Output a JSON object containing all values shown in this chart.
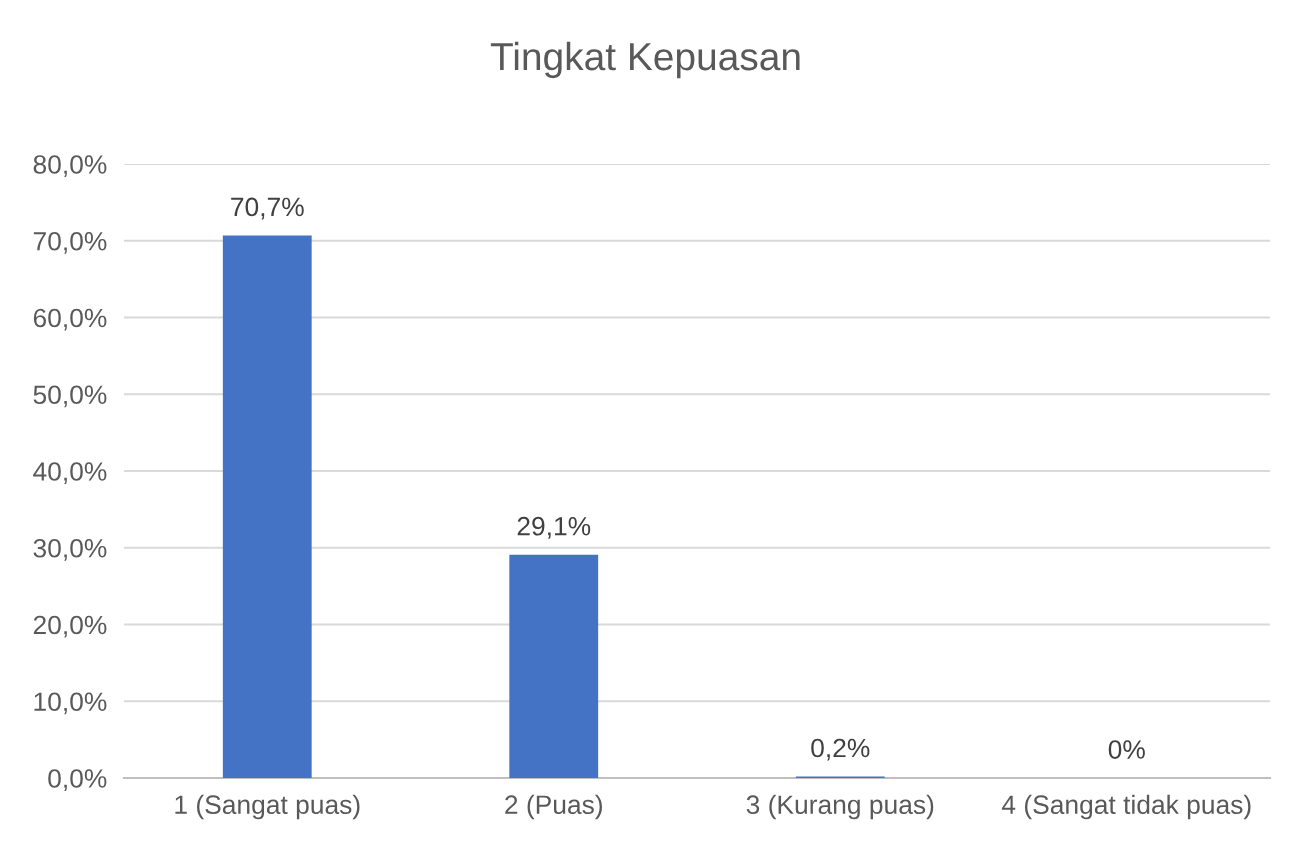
{
  "chart_data": {
    "type": "bar",
    "title": "Tingkat Kepuasan",
    "categories": [
      "1 (Sangat puas)",
      "2 (Puas)",
      "3 (Kurang puas)",
      "4 (Sangat tidak puas)"
    ],
    "values": [
      70.7,
      29.1,
      0.2,
      0
    ],
    "value_labels": [
      "70,7%",
      "29,1%",
      "0,2%",
      "0%"
    ],
    "color": "#4472c4",
    "ylim": [
      0,
      80
    ],
    "yticks": [
      {
        "value": 0,
        "label": "0,0%"
      },
      {
        "value": 10,
        "label": "10,0%"
      },
      {
        "value": 20,
        "label": "20,0%"
      },
      {
        "value": 30,
        "label": "30,0%"
      },
      {
        "value": 40,
        "label": "40,0%"
      },
      {
        "value": 50,
        "label": "50,0%"
      },
      {
        "value": 60,
        "label": "60,0%"
      },
      {
        "value": 70,
        "label": "70,0%"
      },
      {
        "value": 80,
        "label": "80,0%"
      }
    ],
    "grid": "y",
    "legend": false
  }
}
